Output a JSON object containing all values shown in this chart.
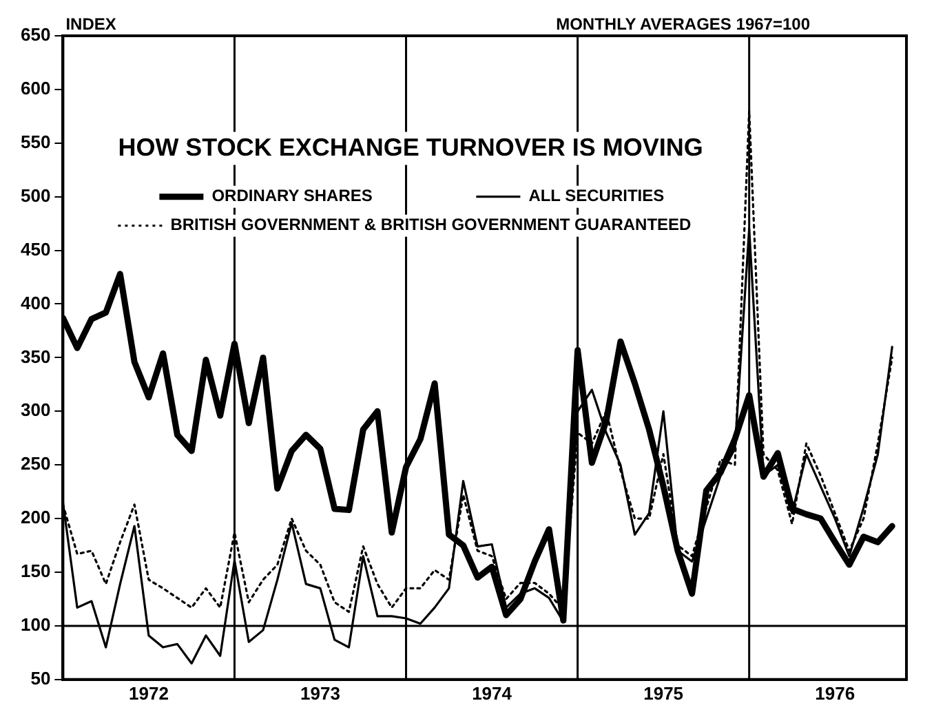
{
  "chart_data": {
    "type": "line",
    "title": "HOW STOCK EXCHANGE TURNOVER IS MOVING",
    "subtitle": "MONTHLY AVERAGES 1967=100",
    "ylabel": "INDEX",
    "x": [
      "1972-01",
      "1972-02",
      "1972-03",
      "1972-04",
      "1972-05",
      "1972-06",
      "1972-07",
      "1972-08",
      "1972-09",
      "1972-10",
      "1972-11",
      "1972-12",
      "1973-01",
      "1973-02",
      "1973-03",
      "1973-04",
      "1973-05",
      "1973-06",
      "1973-07",
      "1973-08",
      "1973-09",
      "1973-10",
      "1973-11",
      "1973-12",
      "1974-01",
      "1974-02",
      "1974-03",
      "1974-04",
      "1974-05",
      "1974-06",
      "1974-07",
      "1974-08",
      "1974-09",
      "1974-10",
      "1974-11",
      "1974-12",
      "1975-01",
      "1975-02",
      "1975-03",
      "1975-04",
      "1975-05",
      "1975-06",
      "1975-07",
      "1975-08",
      "1975-09",
      "1975-10",
      "1975-11",
      "1975-12",
      "1976-01",
      "1976-02",
      "1976-03",
      "1976-04",
      "1976-05",
      "1976-06",
      "1976-07",
      "1976-08",
      "1976-09",
      "1976-10",
      "1976-11"
    ],
    "series": [
      {
        "name": "ORDINARY SHARES",
        "color": "#000000",
        "values": [
          387,
          359,
          386,
          392,
          428,
          346,
          313,
          354,
          278,
          263,
          348,
          296,
          363,
          289,
          350,
          228,
          263,
          278,
          265,
          209,
          208,
          283,
          300,
          187,
          248,
          274,
          326,
          185,
          175,
          145,
          155,
          110,
          125,
          160,
          190,
          105,
          357,
          252,
          291,
          365,
          326,
          283,
          230,
          170,
          130,
          226,
          243,
          274,
          315,
          239,
          261,
          209,
          204,
          200,
          178,
          157,
          183,
          178,
          193
        ]
      },
      {
        "name": "ALL SECURITIES",
        "color": "#000000",
        "values": [
          215,
          117,
          123,
          80,
          139,
          193,
          91,
          80,
          83,
          65,
          91,
          72,
          161,
          85,
          96,
          143,
          196,
          139,
          135,
          87,
          80,
          165,
          109,
          109,
          107,
          102,
          117,
          135,
          235,
          174,
          176,
          117,
          130,
          135,
          126,
          104,
          300,
          320,
          280,
          250,
          185,
          205,
          300,
          170,
          160,
          200,
          240,
          265,
          470,
          240,
          250,
          205,
          260,
          230,
          200,
          165,
          210,
          260,
          360
        ]
      },
      {
        "name": "BRITISH GOVERNMENT & BRITISH GOVERNMENT GUARANTEED",
        "color": "#000000",
        "line_style": "dotted",
        "values": [
          213,
          167,
          170,
          139,
          178,
          213,
          143,
          135,
          126,
          117,
          135,
          117,
          187,
          122,
          143,
          157,
          200,
          170,
          157,
          122,
          113,
          174,
          139,
          117,
          135,
          135,
          152,
          143,
          222,
          170,
          165,
          125,
          140,
          140,
          130,
          115,
          280,
          270,
          300,
          245,
          200,
          200,
          260,
          175,
          165,
          210,
          255,
          250,
          580,
          260,
          245,
          195,
          270,
          240,
          205,
          170,
          200,
          270,
          350
        ]
      }
    ],
    "xlim": [
      "1972-01",
      "1976-12"
    ],
    "xticks": [
      {
        "value": "1972-07",
        "label": "1972"
      },
      {
        "value": "1973-07",
        "label": "1973"
      },
      {
        "value": "1974-07",
        "label": "1974"
      },
      {
        "value": "1975-07",
        "label": "1975"
      },
      {
        "value": "1976-07",
        "label": "1976"
      }
    ],
    "ylim": [
      50,
      650
    ],
    "yticks": [
      50,
      100,
      150,
      200,
      250,
      300,
      350,
      400,
      450,
      500,
      550,
      600,
      650
    ],
    "ref_lines": [
      {
        "axis": "y",
        "value": 100
      },
      {
        "axis": "x",
        "value": "1973-01"
      },
      {
        "axis": "x",
        "value": "1974-01"
      },
      {
        "axis": "x",
        "value": "1975-01"
      },
      {
        "axis": "x",
        "value": "1976-01"
      }
    ],
    "grid": false,
    "legend": "top left",
    "marker": "none",
    "line_style": "solid"
  }
}
